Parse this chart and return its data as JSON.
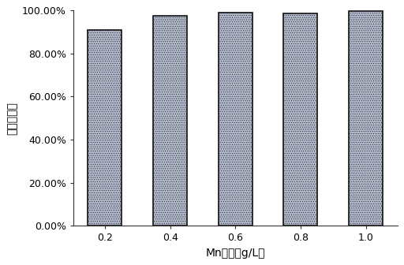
{
  "categories": [
    "0.2",
    "0.4",
    "0.6",
    "0.8",
    "1.0"
  ],
  "values": [
    0.911,
    0.975,
    0.99,
    0.985,
    0.997
  ],
  "bar_color": "#adb5c7",
  "bar_edge_color": "#111111",
  "bar_edge_width": 1.2,
  "title": "",
  "xlabel": "Mn浓度（g/L）",
  "ylabel": "最高去除率",
  "ylim": [
    0,
    1.0
  ],
  "yticks": [
    0.0,
    0.2,
    0.4,
    0.6,
    0.8,
    1.0
  ],
  "ytick_labels": [
    "0.00%",
    "20.00%",
    "40.00%",
    "60.00%",
    "80.00%",
    "100.00%"
  ],
  "bar_width": 0.52,
  "background_color": "#ffffff",
  "font_size": 9,
  "label_font_size": 10,
  "hatch_color": "#d8dce8"
}
